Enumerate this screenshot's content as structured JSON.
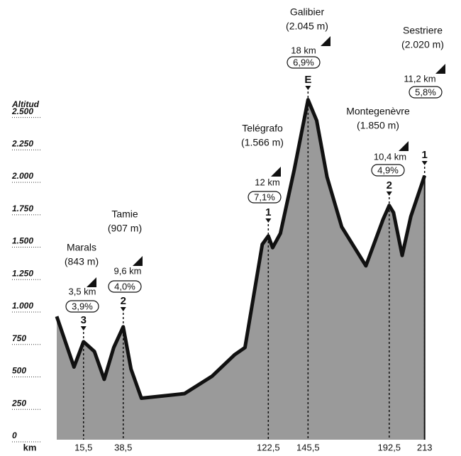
{
  "chart_data": {
    "type": "area",
    "y_axis_label": "Altitud",
    "x_axis_label": "km",
    "x": [
      0,
      10,
      15.5,
      21.8,
      27.5,
      33,
      38.5,
      43,
      49,
      74,
      90,
      103,
      109,
      119,
      122.5,
      125,
      129.5,
      137.5,
      145.5,
      150.5,
      156.5,
      165,
      179,
      189,
      192.5,
      195,
      200,
      205,
      213
    ],
    "values": [
      950,
      560,
      755,
      680,
      465,
      710,
      870,
      545,
      320,
      355,
      490,
      655,
      710,
      1505,
      1570,
      1480,
      1590,
      2080,
      2620,
      2460,
      2025,
      1640,
      1340,
      1700,
      1805,
      1750,
      1420,
      1720,
      2035
    ],
    "color": "#9a9a9a",
    "line_color": "#111111",
    "xlim": [
      0,
      213
    ],
    "ylim": [
      0,
      2700
    ],
    "xticks": [
      {
        "value": 15.5,
        "label": "15,5"
      },
      {
        "value": 38.5,
        "label": "38,5"
      },
      {
        "value": 122.5,
        "label": "122,5"
      },
      {
        "value": 145.5,
        "label": "145,5"
      },
      {
        "value": 192.5,
        "label": "192,5"
      },
      213
    ],
    "yticks": [
      0,
      250,
      500,
      750,
      {
        "value": 1000,
        "label": "1.000"
      },
      {
        "value": 1250,
        "label": "1.250"
      },
      {
        "value": 1500,
        "label": "1.500"
      },
      {
        "value": 1750,
        "label": "1.750"
      },
      {
        "value": 2000,
        "label": "2.000"
      },
      {
        "value": 2250,
        "label": "2.250"
      },
      {
        "value": 2500,
        "label": "2.500"
      }
    ],
    "climbs": [
      {
        "name": "Marals",
        "altitude": "(843 m)",
        "length": "3,5 km",
        "gradient": "3,9%",
        "category": "3"
      },
      {
        "name": "Tamie",
        "altitude": "(907 m)",
        "length": "9,6 km",
        "gradient": "4,0%",
        "category": "2"
      },
      {
        "name": "Telégrafo",
        "altitude": "(1.566 m)",
        "length": "12 km",
        "gradient": "7,1%",
        "category": "1"
      },
      {
        "name": "Galibier",
        "altitude": "(2.045 m)",
        "length": "18 km",
        "gradient": "6,9%",
        "category": "E"
      },
      {
        "name": "Montegenèvre",
        "altitude": "(1.850 m)",
        "length": "10,4 km",
        "gradient": "4,9%",
        "category": "2"
      },
      {
        "name": "Sestriere",
        "altitude": "(2.020 m)",
        "length": "11,2 km",
        "gradient": "5,8%",
        "category": "1"
      }
    ]
  }
}
